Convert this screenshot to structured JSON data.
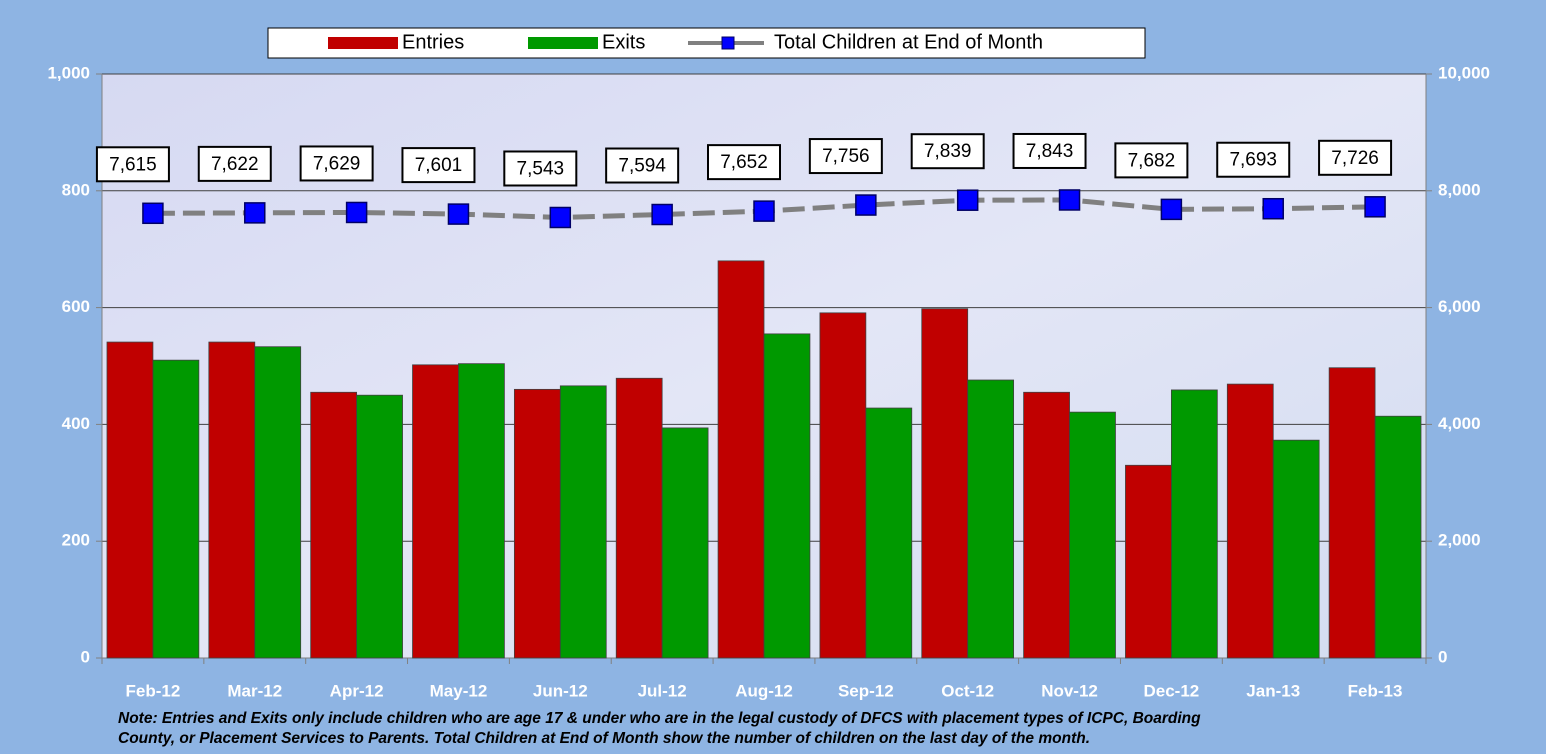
{
  "chart_data": {
    "type": "bar",
    "categories": [
      "Feb-12",
      "Mar-12",
      "Apr-12",
      "May-12",
      "Jun-12",
      "Jul-12",
      "Aug-12",
      "Sep-12",
      "Oct-12",
      "Nov-12",
      "Dec-12",
      "Jan-13",
      "Feb-13"
    ],
    "series": [
      {
        "name": "Entries",
        "color": "#c00000",
        "values": [
          541,
          541,
          455,
          502,
          460,
          479,
          680,
          591,
          598,
          455,
          330,
          469,
          497
        ]
      },
      {
        "name": "Exits",
        "color": "#009900",
        "values": [
          510,
          533,
          450,
          504,
          466,
          394,
          555,
          428,
          476,
          421,
          459,
          373,
          414
        ]
      },
      {
        "name": "Total Children at End of Month",
        "type": "line",
        "axis": "y2",
        "color": "#808080",
        "marker_color": "#0000ff",
        "values": [
          7615,
          7622,
          7629,
          7601,
          7543,
          7594,
          7652,
          7756,
          7839,
          7843,
          7682,
          7693,
          7726
        ],
        "value_labels": [
          "7,615",
          "7,622",
          "7,629",
          "7,601",
          "7,543",
          "7,594",
          "7,652",
          "7,756",
          "7,839",
          "7,843",
          "7,682",
          "7,693",
          "7,726"
        ]
      }
    ],
    "ylim": [
      0,
      1000
    ],
    "yticks": [
      0,
      200,
      400,
      600,
      800,
      {
        "value": 1000,
        "label": "1,000"
      }
    ],
    "y2lim": [
      0,
      10000
    ],
    "y2ticks": [
      0,
      {
        "value": 2000,
        "label": "2,000"
      },
      {
        "value": 4000,
        "label": "4,000"
      },
      {
        "value": 6000,
        "label": "6,000"
      },
      {
        "value": 8000,
        "label": "8,000"
      },
      {
        "value": 10000,
        "label": "10,000"
      }
    ],
    "grid": true,
    "legend": "top",
    "notes": [
      "Note:  Entries and Exits only  include children who are age 17 & under who are in the legal custody of DFCS with placement types of ICPC, Boarding",
      "County, or Placement Services to Parents.  Total Children at End of Month show the number of children on the last day of the month."
    ]
  }
}
